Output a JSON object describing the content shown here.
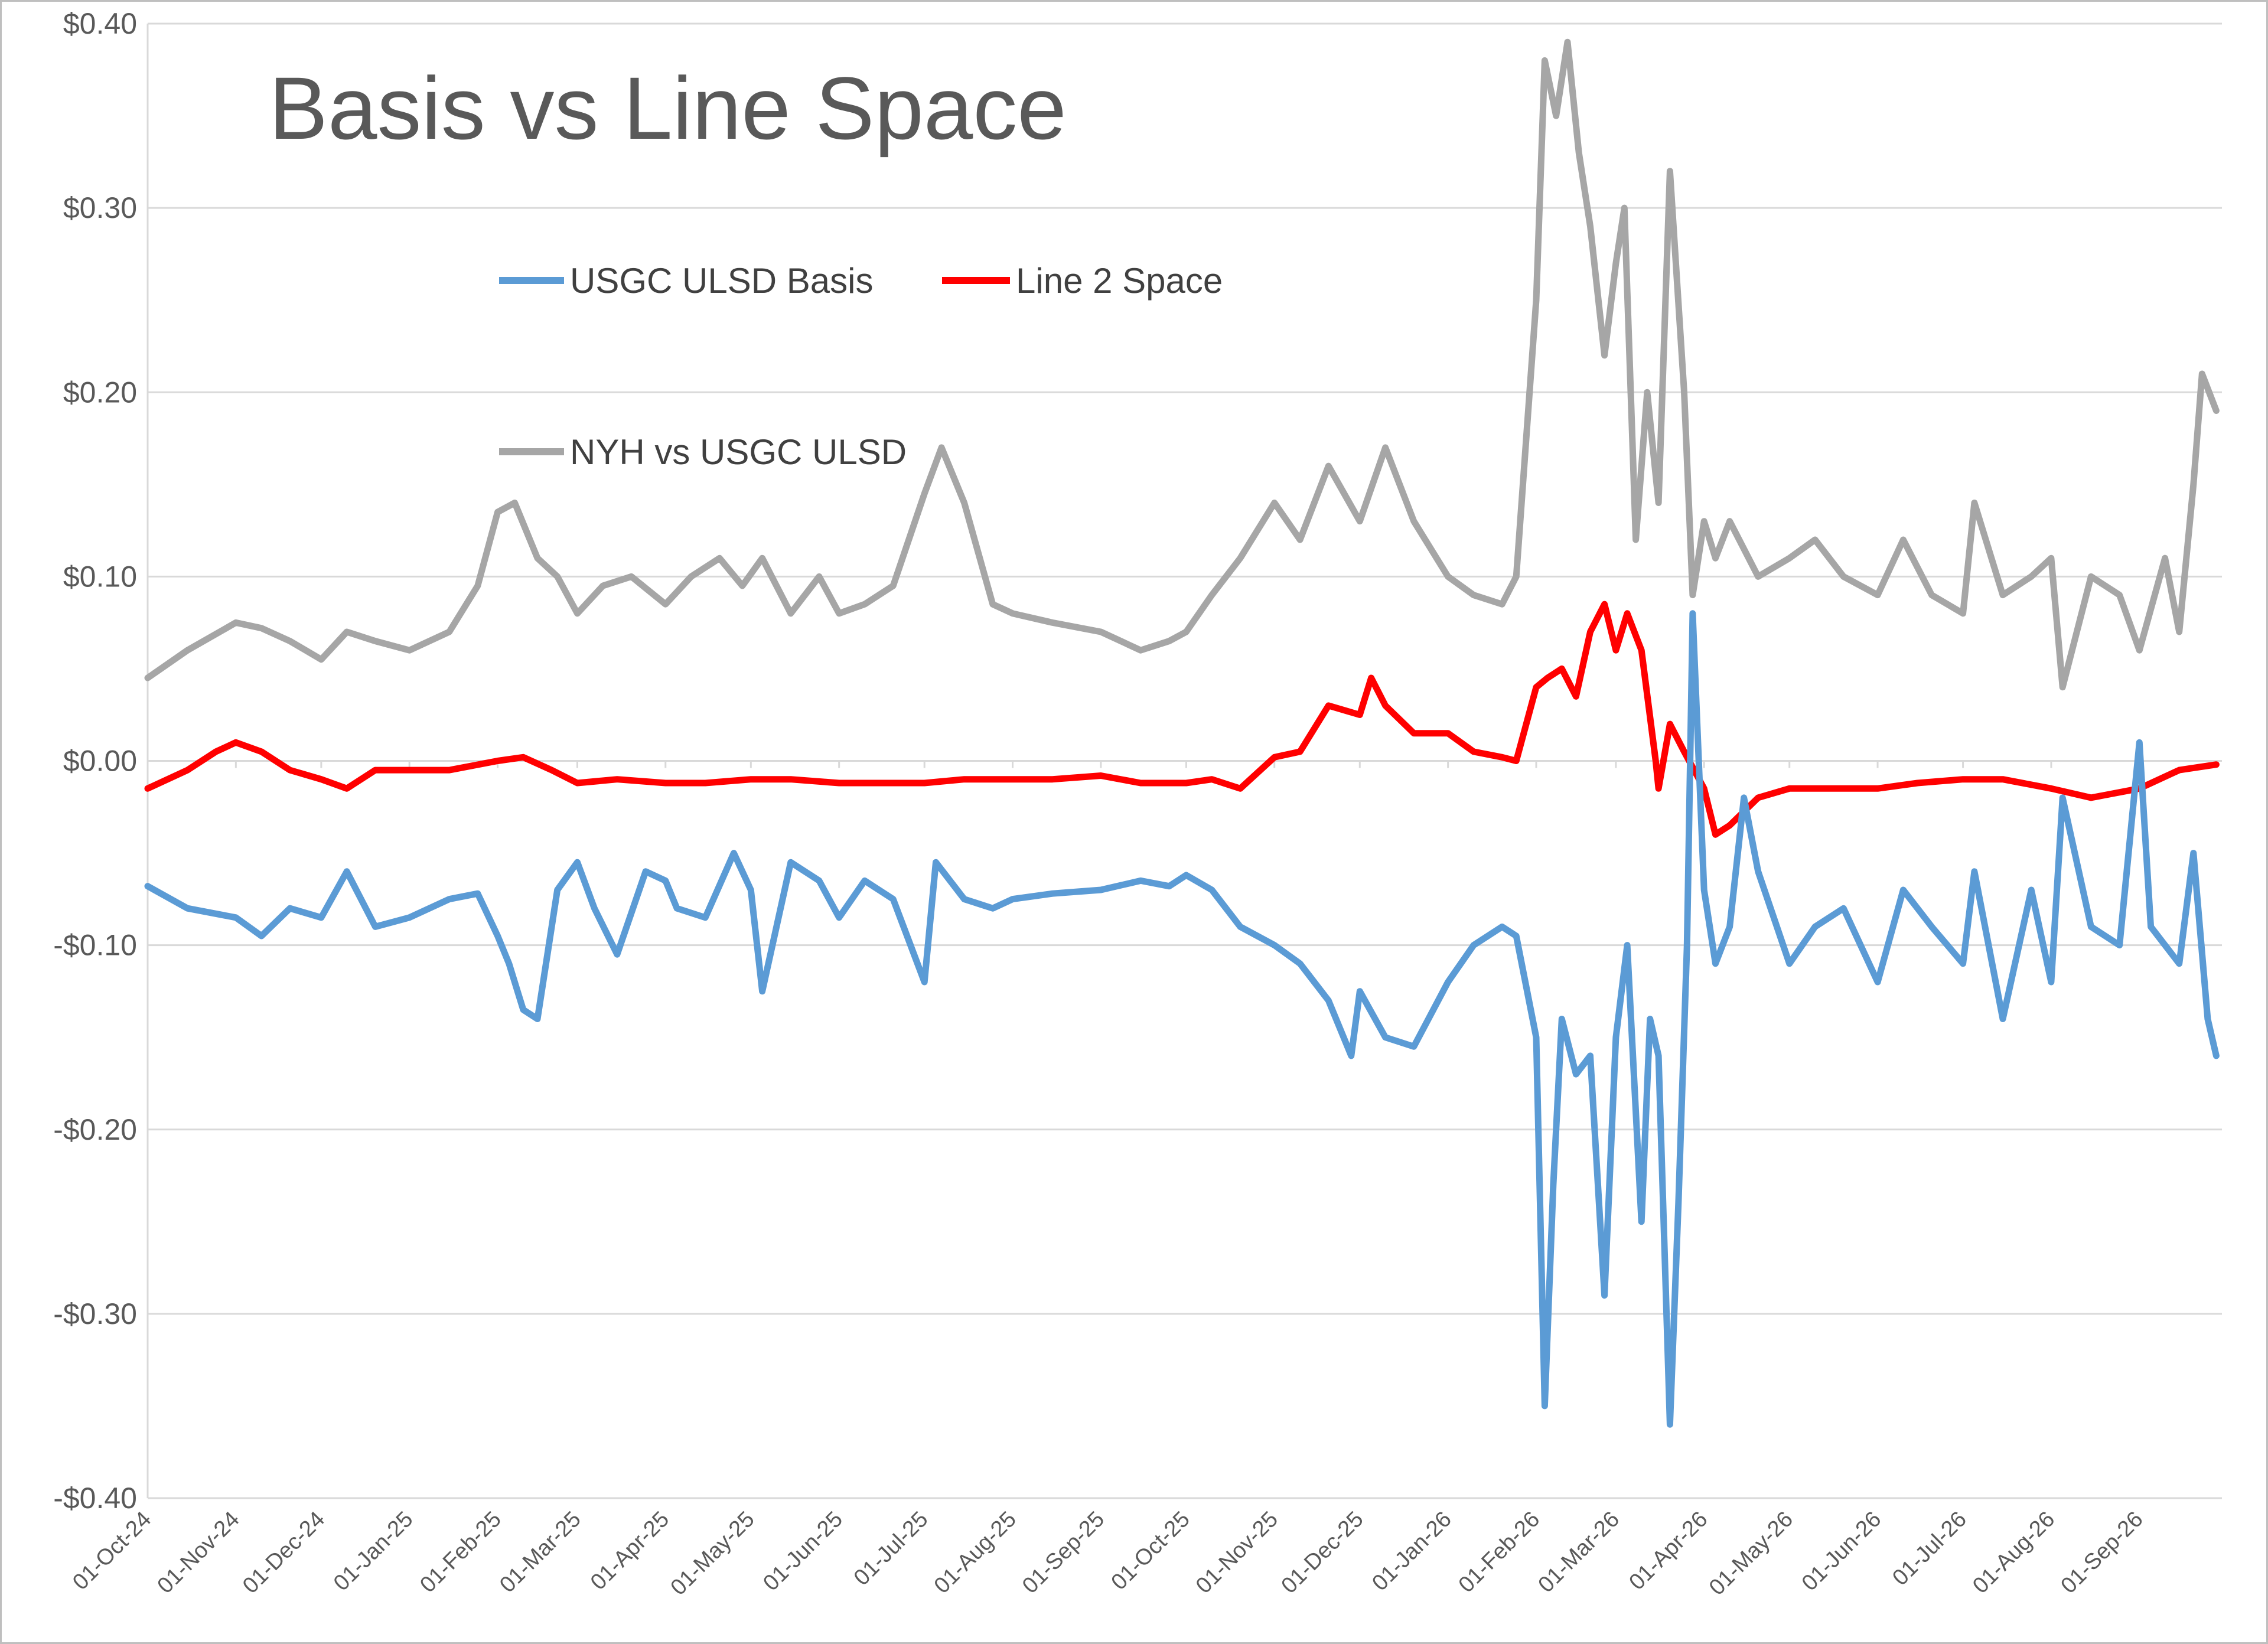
{
  "chart_data": {
    "type": "line",
    "title": "Basis vs Line Space",
    "xlabel": "",
    "ylabel": "",
    "ylim": [
      -0.4,
      0.4
    ],
    "y_ticks": [
      {
        "value": 0.4,
        "label": "$0.40"
      },
      {
        "value": 0.3,
        "label": "$0.30"
      },
      {
        "value": 0.2,
        "label": "$0.20"
      },
      {
        "value": 0.1,
        "label": "$0.10"
      },
      {
        "value": 0.0,
        "label": "$0.00"
      },
      {
        "value": -0.1,
        "label": "-$0.10"
      },
      {
        "value": -0.2,
        "label": "-$0.20"
      },
      {
        "value": -0.3,
        "label": "-$0.30"
      },
      {
        "value": -0.4,
        "label": "-$0.40"
      }
    ],
    "x_ticks": [
      "01-Oct-24",
      "01-Nov-24",
      "01-Dec-24",
      "01-Jan-25",
      "01-Feb-25",
      "01-Mar-25",
      "01-Apr-25",
      "01-May-25",
      "01-Jun-25",
      "01-Jul-25",
      "01-Aug-25",
      "01-Sep-25",
      "01-Oct-25",
      "01-Nov-25",
      "01-Dec-25",
      "01-Jan-26",
      "01-Feb-26",
      "01-Mar-26",
      "01-Apr-26",
      "01-May-26",
      "01-Jun-26",
      "01-Jul-26",
      "01-Aug-26",
      "01-Sep-26"
    ],
    "grid": true,
    "legend": [
      {
        "name": "USGC ULSD Basis",
        "color": "#5b9bd5"
      },
      {
        "name": "Line 2 Space",
        "color": "#ff0000"
      },
      {
        "name": "NYH vs USGC ULSD",
        "color": "#a6a6a6"
      }
    ],
    "series": [
      {
        "name": "NYH vs USGC ULSD",
        "color": "#a6a6a6",
        "x": [
          "01-Oct-24",
          "15-Oct-24",
          "01-Nov-24",
          "10-Nov-24",
          "20-Nov-24",
          "01-Dec-24",
          "10-Dec-24",
          "20-Dec-24",
          "01-Jan-25",
          "15-Jan-25",
          "25-Jan-25",
          "01-Feb-25",
          "07-Feb-25",
          "15-Feb-25",
          "22-Feb-25",
          "01-Mar-25",
          "10-Mar-25",
          "20-Mar-25",
          "01-Apr-25",
          "10-Apr-25",
          "20-Apr-25",
          "28-Apr-25",
          "05-May-25",
          "15-May-25",
          "25-May-25",
          "01-Jun-25",
          "10-Jun-25",
          "20-Jun-25",
          "01-Jul-25",
          "07-Jul-25",
          "15-Jul-25",
          "25-Jul-25",
          "01-Aug-25",
          "15-Aug-25",
          "01-Sep-25",
          "15-Sep-25",
          "25-Sep-25",
          "01-Oct-25",
          "10-Oct-25",
          "20-Oct-25",
          "01-Nov-25",
          "10-Nov-25",
          "20-Nov-25",
          "01-Dec-25",
          "10-Dec-25",
          "20-Dec-25",
          "01-Jan-26",
          "10-Jan-26",
          "20-Jan-26",
          "25-Jan-26",
          "01-Feb-26",
          "04-Feb-26",
          "08-Feb-26",
          "12-Feb-26",
          "16-Feb-26",
          "20-Feb-26",
          "25-Feb-26",
          "01-Mar-26",
          "04-Mar-26",
          "08-Mar-26",
          "12-Mar-26",
          "16-Mar-26",
          "20-Mar-26",
          "25-Mar-26",
          "28-Mar-26",
          "01-Apr-26",
          "05-Apr-26",
          "10-Apr-26",
          "20-Apr-26",
          "01-May-26",
          "10-May-26",
          "20-May-26",
          "01-Jun-26",
          "10-Jun-26",
          "20-Jun-26",
          "01-Jul-26",
          "05-Jul-26",
          "15-Jul-26",
          "25-Jul-26",
          "01-Aug-26",
          "05-Aug-26",
          "15-Aug-26",
          "25-Aug-26",
          "01-Sep-26",
          "10-Sep-26",
          "15-Sep-26",
          "20-Sep-26",
          "23-Sep-26",
          "28-Sep-26"
        ],
        "values": [
          0.045,
          0.06,
          0.075,
          0.072,
          0.065,
          0.055,
          0.07,
          0.065,
          0.06,
          0.07,
          0.095,
          0.135,
          0.14,
          0.11,
          0.1,
          0.08,
          0.095,
          0.1,
          0.085,
          0.1,
          0.11,
          0.095,
          0.11,
          0.08,
          0.1,
          0.08,
          0.085,
          0.095,
          0.145,
          0.17,
          0.14,
          0.085,
          0.08,
          0.075,
          0.07,
          0.06,
          0.065,
          0.07,
          0.09,
          0.11,
          0.14,
          0.12,
          0.16,
          0.13,
          0.17,
          0.13,
          0.1,
          0.09,
          0.085,
          0.1,
          0.25,
          0.38,
          0.35,
          0.39,
          0.33,
          0.29,
          0.22,
          0.27,
          0.3,
          0.12,
          0.2,
          0.14,
          0.32,
          0.2,
          0.09,
          0.13,
          0.11,
          0.13,
          0.1,
          0.11,
          0.12,
          0.1,
          0.09,
          0.12,
          0.09,
          0.08,
          0.14,
          0.09,
          0.1,
          0.11,
          0.04,
          0.1,
          0.09,
          0.06,
          0.11,
          0.07,
          0.15,
          0.21,
          0.19
        ]
      },
      {
        "name": "Line 2 Space",
        "color": "#ff0000",
        "x": [
          "01-Oct-24",
          "15-Oct-24",
          "25-Oct-24",
          "01-Nov-24",
          "10-Nov-24",
          "20-Nov-24",
          "01-Dec-24",
          "10-Dec-24",
          "20-Dec-24",
          "01-Jan-25",
          "15-Jan-25",
          "01-Feb-25",
          "10-Feb-25",
          "20-Feb-25",
          "01-Mar-25",
          "15-Mar-25",
          "01-Apr-25",
          "15-Apr-25",
          "01-May-25",
          "15-May-25",
          "01-Jun-25",
          "15-Jun-25",
          "01-Jul-25",
          "15-Jul-25",
          "01-Aug-25",
          "15-Aug-25",
          "01-Sep-25",
          "15-Sep-25",
          "01-Oct-25",
          "10-Oct-25",
          "20-Oct-25",
          "01-Nov-25",
          "10-Nov-25",
          "20-Nov-25",
          "01-Dec-25",
          "05-Dec-25",
          "10-Dec-25",
          "20-Dec-25",
          "01-Jan-26",
          "10-Jan-26",
          "20-Jan-26",
          "25-Jan-26",
          "01-Feb-26",
          "05-Feb-26",
          "10-Feb-26",
          "15-Feb-26",
          "20-Feb-26",
          "25-Feb-26",
          "01-Mar-26",
          "05-Mar-26",
          "10-Mar-26",
          "15-Mar-26",
          "16-Mar-26",
          "20-Mar-26",
          "25-Mar-26",
          "01-Apr-26",
          "05-Apr-26",
          "10-Apr-26",
          "20-Apr-26",
          "01-May-26",
          "15-May-26",
          "01-Jun-26",
          "15-Jun-26",
          "01-Jul-26",
          "15-Jul-26",
          "01-Aug-26",
          "15-Aug-26",
          "01-Sep-26",
          "15-Sep-26",
          "28-Sep-26"
        ],
        "values": [
          -0.015,
          -0.005,
          0.005,
          0.01,
          0.005,
          -0.005,
          -0.01,
          -0.015,
          -0.005,
          -0.005,
          -0.005,
          0.0,
          0.002,
          -0.005,
          -0.012,
          -0.01,
          -0.012,
          -0.012,
          -0.01,
          -0.01,
          -0.012,
          -0.012,
          -0.012,
          -0.01,
          -0.01,
          -0.01,
          -0.008,
          -0.012,
          -0.012,
          -0.01,
          -0.015,
          0.002,
          0.005,
          0.03,
          0.025,
          0.045,
          0.03,
          0.015,
          0.015,
          0.005,
          0.002,
          0.0,
          0.04,
          0.045,
          0.05,
          0.035,
          0.07,
          0.085,
          0.06,
          0.08,
          0.06,
          0.0,
          -0.015,
          0.02,
          0.005,
          -0.015,
          -0.04,
          -0.035,
          -0.02,
          -0.015,
          -0.015,
          -0.015,
          -0.012,
          -0.01,
          -0.01,
          -0.015,
          -0.02,
          -0.015,
          -0.005,
          -0.002
        ]
      },
      {
        "name": "USGC ULSD Basis",
        "color": "#5b9bd5",
        "x": [
          "01-Oct-24",
          "15-Oct-24",
          "01-Nov-24",
          "10-Nov-24",
          "20-Nov-24",
          "01-Dec-24",
          "10-Dec-24",
          "20-Dec-24",
          "01-Jan-25",
          "15-Jan-25",
          "25-Jan-25",
          "01-Feb-25",
          "05-Feb-25",
          "10-Feb-25",
          "15-Feb-25",
          "22-Feb-25",
          "01-Mar-25",
          "07-Mar-25",
          "15-Mar-25",
          "25-Mar-25",
          "01-Apr-25",
          "05-Apr-25",
          "15-Apr-25",
          "25-Apr-25",
          "01-May-25",
          "05-May-25",
          "15-May-25",
          "25-May-25",
          "01-Jun-25",
          "10-Jun-25",
          "20-Jun-25",
          "01-Jul-25",
          "05-Jul-25",
          "15-Jul-25",
          "25-Jul-25",
          "01-Aug-25",
          "15-Aug-25",
          "01-Sep-25",
          "15-Sep-25",
          "25-Sep-25",
          "01-Oct-25",
          "10-Oct-25",
          "20-Oct-25",
          "01-Nov-25",
          "10-Nov-25",
          "20-Nov-25",
          "28-Nov-25",
          "01-Dec-25",
          "10-Dec-25",
          "20-Dec-25",
          "01-Jan-26",
          "10-Jan-26",
          "20-Jan-26",
          "25-Jan-26",
          "01-Feb-26",
          "04-Feb-26",
          "07-Feb-26",
          "10-Feb-26",
          "15-Feb-26",
          "20-Feb-26",
          "25-Feb-26",
          "01-Mar-26",
          "05-Mar-26",
          "10-Mar-26",
          "13-Mar-26",
          "16-Mar-26",
          "20-Mar-26",
          "23-Mar-26",
          "26-Mar-26",
          "28-Mar-26",
          "01-Apr-26",
          "05-Apr-26",
          "10-Apr-26",
          "15-Apr-26",
          "20-Apr-26",
          "01-May-26",
          "10-May-26",
          "20-May-26",
          "01-Jun-26",
          "10-Jun-26",
          "20-Jun-26",
          "01-Jul-26",
          "05-Jul-26",
          "15-Jul-26",
          "25-Jul-26",
          "01-Aug-26",
          "05-Aug-26",
          "15-Aug-26",
          "25-Aug-26",
          "01-Sep-26",
          "05-Sep-26",
          "15-Sep-26",
          "20-Sep-26",
          "25-Sep-26",
          "28-Sep-26"
        ],
        "values": [
          -0.068,
          -0.08,
          -0.085,
          -0.095,
          -0.08,
          -0.085,
          -0.06,
          -0.09,
          -0.085,
          -0.075,
          -0.072,
          -0.095,
          -0.11,
          -0.135,
          -0.14,
          -0.07,
          -0.055,
          -0.08,
          -0.105,
          -0.06,
          -0.065,
          -0.08,
          -0.085,
          -0.05,
          -0.07,
          -0.125,
          -0.055,
          -0.065,
          -0.085,
          -0.065,
          -0.075,
          -0.12,
          -0.055,
          -0.075,
          -0.08,
          -0.075,
          -0.072,
          -0.07,
          -0.065,
          -0.068,
          -0.062,
          -0.07,
          -0.09,
          -0.1,
          -0.11,
          -0.13,
          -0.16,
          -0.125,
          -0.15,
          -0.155,
          -0.12,
          -0.1,
          -0.09,
          -0.095,
          -0.15,
          -0.35,
          -0.23,
          -0.14,
          -0.17,
          -0.16,
          -0.29,
          -0.15,
          -0.1,
          -0.25,
          -0.14,
          -0.16,
          -0.36,
          -0.24,
          -0.1,
          0.08,
          -0.07,
          -0.11,
          -0.09,
          -0.02,
          -0.06,
          -0.11,
          -0.09,
          -0.08,
          -0.12,
          -0.07,
          -0.09,
          -0.11,
          -0.06,
          -0.14,
          -0.07,
          -0.12,
          -0.02,
          -0.09,
          -0.1,
          0.01,
          -0.09,
          -0.11,
          -0.05,
          -0.14,
          -0.16
        ]
      }
    ]
  }
}
